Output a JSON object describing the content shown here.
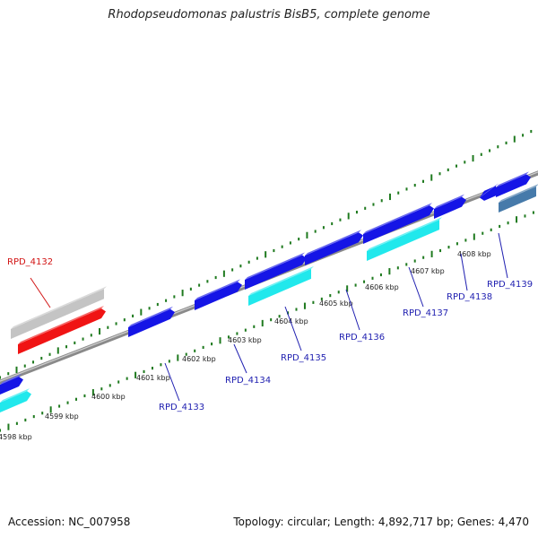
{
  "title": "Rhodopseudomonas palustris BisB5, complete genome",
  "footer": {
    "accession": "Accession: NC_007958",
    "summary": "Topology: circular; Length: 4,892,717 bp; Genes: 4,470"
  },
  "colors": {
    "dark_blue": "#1515e6",
    "cyan": "#21e8ec",
    "red": "#f01414",
    "gray": "#c4c4c4",
    "steel": "#467aaa",
    "tick_green": "#1f7a1f",
    "backbone": "#8a8a8a",
    "label_blue": "#1f1fb0",
    "label_red": "#d21414"
  },
  "scale_ticks": [
    "4598 kbp",
    "4599 kbp",
    "4600 kbp",
    "4601 kbp",
    "4602 kbp",
    "4603 kbp",
    "4604 kbp",
    "4605 kbp",
    "4606 kbp",
    "4607 kbp",
    "4608 kbp"
  ],
  "gene_labels": [
    "RPD_4132",
    "RPD_4133",
    "RPD_4134",
    "RPD_4135",
    "RPD_4136",
    "RPD_4137",
    "RPD_4138",
    "RPD_4139"
  ]
}
